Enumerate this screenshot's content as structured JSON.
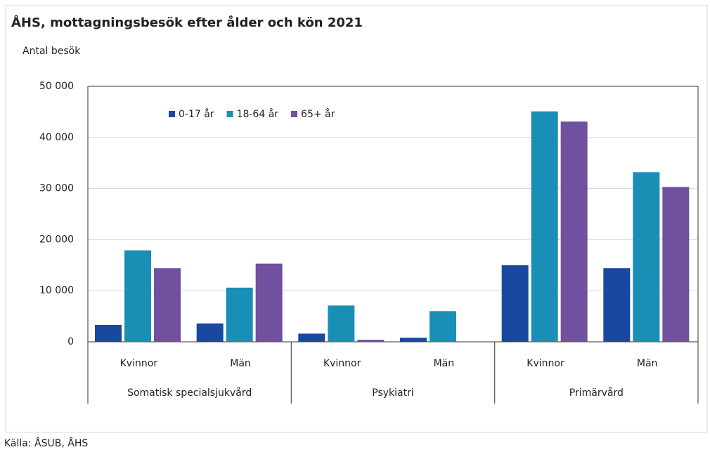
{
  "chart_data": {
    "type": "bar",
    "title": "ÅHS, mottagningsbesök efter ålder och kön 2021",
    "y_label": "Antal besök",
    "source": "Källa: ÅSUB, ÅHS",
    "groups": [
      "Somatisk specialsjukvård",
      "Psykiatri",
      "Primärvård"
    ],
    "categories": [
      "Kvinnor",
      "Män",
      "Kvinnor",
      "Män",
      "Kvinnor",
      "Män"
    ],
    "series": [
      {
        "name": "0-17 år",
        "color": "#1a47a0",
        "values": [
          3300,
          3600,
          1600,
          800,
          15000,
          14400
        ]
      },
      {
        "name": "18-64 år",
        "color": "#1a8fb5",
        "values": [
          17900,
          10600,
          7100,
          6000,
          45100,
          33200
        ]
      },
      {
        "name": "65+ år",
        "color": "#7150a0",
        "values": [
          14400,
          15300,
          400,
          0,
          43100,
          30300
        ]
      }
    ],
    "ylim": [
      0,
      50000
    ],
    "yticks": [
      0,
      {
        "value": 10000,
        "label": "10 000"
      },
      {
        "value": 20000,
        "label": "20 000"
      },
      {
        "value": 30000,
        "label": "30 000"
      },
      {
        "value": 40000,
        "label": "40 000"
      },
      {
        "value": 50000,
        "label": "50 000"
      }
    ],
    "grid": true,
    "legend": "top"
  }
}
